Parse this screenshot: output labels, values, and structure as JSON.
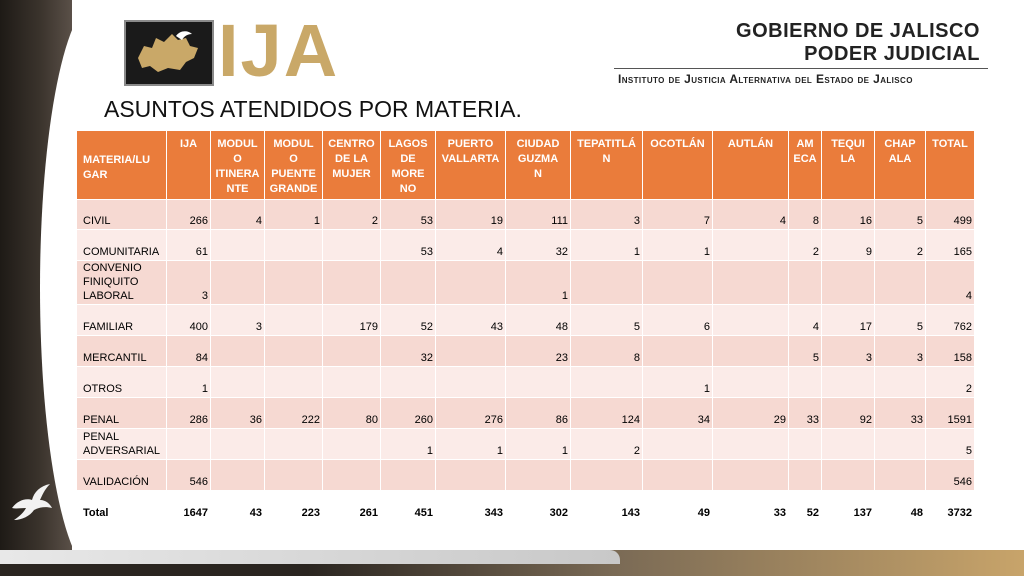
{
  "header": {
    "logo_text": "IJA",
    "gov_line1": "GOBIERNO DE JALISCO",
    "gov_line2": "PODER JUDICIAL",
    "institute": "Instituto de Justicia Alternativa del Estado de Jalisco"
  },
  "title": "ASUNTOS ATENDIDOS POR MATERIA.",
  "table": {
    "headers": [
      "MATERIA/LU\nGAR",
      "IJA",
      "MODUL\nO\nITINERA\nNTE",
      "MODUL\nO\nPUENTE\nGRANDE",
      "CENTRO\nDE LA\nMUJER",
      "LAGOS\nDE\nMORE\nNO",
      "PUERTO\nVALLARTA",
      "CIUDAD\nGUZMA\nN",
      "TEPATITLÁ\nN",
      "OCOTLÁN",
      "AUTLÁN",
      "AM\nECA",
      "TEQUI\nLA",
      "CHAP\nALA",
      "TOTAL"
    ],
    "rows": [
      [
        "CIVIL",
        "266",
        "4",
        "1",
        "2",
        "53",
        "19",
        "111",
        "3",
        "7",
        "4",
        "8",
        "16",
        "5",
        "499"
      ],
      [
        "COMUNITARIA",
        "61",
        "",
        "",
        "",
        "53",
        "4",
        "32",
        "1",
        "1",
        "",
        "2",
        "9",
        "2",
        "165"
      ],
      [
        "CONVENIO\nFINIQUITO\nLABORAL",
        "3",
        "",
        "",
        "",
        "",
        "",
        "1",
        "",
        "",
        "",
        "",
        "",
        "",
        "4"
      ],
      [
        "FAMILIAR",
        "400",
        "3",
        "",
        "179",
        "52",
        "43",
        "48",
        "5",
        "6",
        "",
        "4",
        "17",
        "5",
        "762"
      ],
      [
        "MERCANTIL",
        "84",
        "",
        "",
        "",
        "32",
        "",
        "23",
        "8",
        "",
        "",
        "5",
        "3",
        "3",
        "158"
      ],
      [
        "OTROS",
        "1",
        "",
        "",
        "",
        "",
        "",
        "",
        "",
        "1",
        "",
        "",
        "",
        "",
        "2"
      ],
      [
        "PENAL",
        "286",
        "36",
        "222",
        "80",
        "260",
        "276",
        "86",
        "124",
        "34",
        "29",
        "33",
        "92",
        "33",
        "1591"
      ],
      [
        "PENAL\nADVERSARIAL",
        "",
        "",
        "",
        "",
        "1",
        "1",
        "1",
        "2",
        "",
        "",
        "",
        "",
        "",
        "5"
      ],
      [
        "VALIDACIÓN",
        "546",
        "",
        "",
        "",
        "",
        "",
        "",
        "",
        "",
        "",
        "",
        "",
        "",
        "546"
      ],
      [
        "Total",
        "1647",
        "43",
        "223",
        "261",
        "451",
        "343",
        "302",
        "143",
        "49",
        "33",
        "52",
        "137",
        "48",
        "3732"
      ]
    ]
  },
  "colors": {
    "header_bg": "#ea7c3b",
    "row_odd": "#f6d9d2",
    "row_even": "#fbebe8",
    "gold": "#c9a868"
  },
  "icons": [
    "dove-icon",
    "jalisco-map-icon"
  ]
}
